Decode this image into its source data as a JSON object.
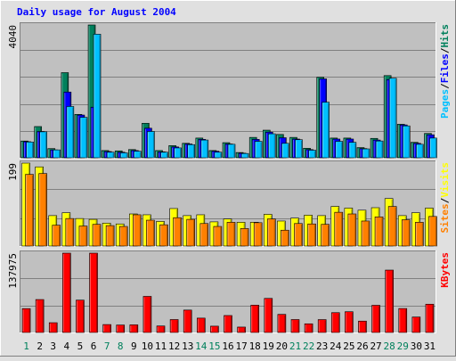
{
  "title": "Daily usage for August 2004",
  "colors": {
    "background": "#e0e0e0",
    "panel": "#c0c0c0",
    "title": "#0000ff",
    "hits": "#00805c",
    "files": "#0000ff",
    "pages": "#00c0ff",
    "visits": "#ffff00",
    "sites": "#ff8000",
    "kbytes": "#ff0000",
    "weekday_label": "#000000",
    "weekend_label": "#00805c"
  },
  "chart_data": [
    {
      "type": "bar",
      "name": "hits-files-pages",
      "categories": [
        "1",
        "2",
        "3",
        "4",
        "5",
        "6",
        "7",
        "8",
        "9",
        "10",
        "11",
        "12",
        "13",
        "14",
        "15",
        "16",
        "17",
        "18",
        "19",
        "20",
        "21",
        "22",
        "23",
        "24",
        "25",
        "26",
        "27",
        "28",
        "29",
        "30",
        "31"
      ],
      "weekend_days": [
        1,
        7,
        8,
        14,
        15,
        21,
        22,
        28,
        29
      ],
      "ymax_label": "4040",
      "ylim": [
        0,
        4040
      ],
      "legend": [
        "Pages",
        "/",
        "Files",
        "/",
        "Hits"
      ],
      "series": [
        {
          "name": "Hits",
          "values": [
            510,
            950,
            280,
            2590,
            1320,
            4040,
            220,
            210,
            250,
            1050,
            220,
            370,
            440,
            600,
            220,
            460,
            160,
            620,
            840,
            710,
            620,
            290,
            2450,
            600,
            600,
            310,
            590,
            2500,
            1020,
            470,
            740
          ]
        },
        {
          "name": "Files",
          "values": [
            490,
            800,
            240,
            2000,
            1300,
            1540,
            190,
            170,
            220,
            900,
            180,
            330,
            420,
            560,
            200,
            420,
            140,
            560,
            780,
            610,
            570,
            250,
            2400,
            570,
            570,
            280,
            540,
            2380,
            1000,
            440,
            700
          ]
        },
        {
          "name": "Pages",
          "values": [
            480,
            790,
            240,
            1560,
            1230,
            3760,
            170,
            150,
            200,
            800,
            170,
            300,
            400,
            540,
            170,
            410,
            130,
            500,
            730,
            440,
            550,
            230,
            1690,
            500,
            470,
            270,
            510,
            2420,
            970,
            410,
            600
          ]
        }
      ]
    },
    {
      "type": "bar",
      "name": "visits-sites",
      "categories": [
        "1",
        "2",
        "3",
        "4",
        "5",
        "6",
        "7",
        "8",
        "9",
        "10",
        "11",
        "12",
        "13",
        "14",
        "15",
        "16",
        "17",
        "18",
        "19",
        "20",
        "21",
        "22",
        "23",
        "24",
        "25",
        "26",
        "27",
        "28",
        "29",
        "30",
        "31"
      ],
      "ymax_label": "199",
      "ylim": [
        0,
        199
      ],
      "legend": [
        "Sites",
        "/",
        "Visits"
      ],
      "series": [
        {
          "name": "Visits",
          "values": [
            199,
            190,
            73,
            80,
            66,
            64,
            55,
            53,
            77,
            75,
            59,
            90,
            73,
            75,
            58,
            65,
            57,
            57,
            76,
            60,
            67,
            74,
            73,
            95,
            91,
            86,
            92,
            114,
            73,
            80,
            91
          ]
        },
        {
          "name": "Sites",
          "values": [
            172,
            174,
            50,
            66,
            48,
            52,
            49,
            47,
            75,
            62,
            51,
            68,
            64,
            54,
            47,
            57,
            42,
            56,
            65,
            38,
            54,
            53,
            52,
            81,
            77,
            60,
            70,
            95,
            63,
            57,
            71
          ]
        }
      ]
    },
    {
      "type": "bar",
      "name": "kbytes",
      "categories": [
        "1",
        "2",
        "3",
        "4",
        "5",
        "6",
        "7",
        "8",
        "9",
        "10",
        "11",
        "12",
        "13",
        "14",
        "15",
        "16",
        "17",
        "18",
        "19",
        "20",
        "21",
        "22",
        "23",
        "24",
        "25",
        "26",
        "27",
        "28",
        "29",
        "30",
        "31"
      ],
      "ymax_label": "137975",
      "ylim": [
        0,
        137975
      ],
      "legend": [
        "KBytes"
      ],
      "series": [
        {
          "name": "KBytes",
          "values": [
            41500,
            57300,
            17000,
            137975,
            56300,
            137975,
            13800,
            13000,
            13300,
            62800,
            11300,
            22500,
            39000,
            25000,
            11000,
            29500,
            9400,
            47500,
            59300,
            31500,
            22500,
            15100,
            22400,
            34500,
            36100,
            19800,
            47300,
            108500,
            41700,
            26900,
            49200
          ]
        }
      ]
    }
  ]
}
